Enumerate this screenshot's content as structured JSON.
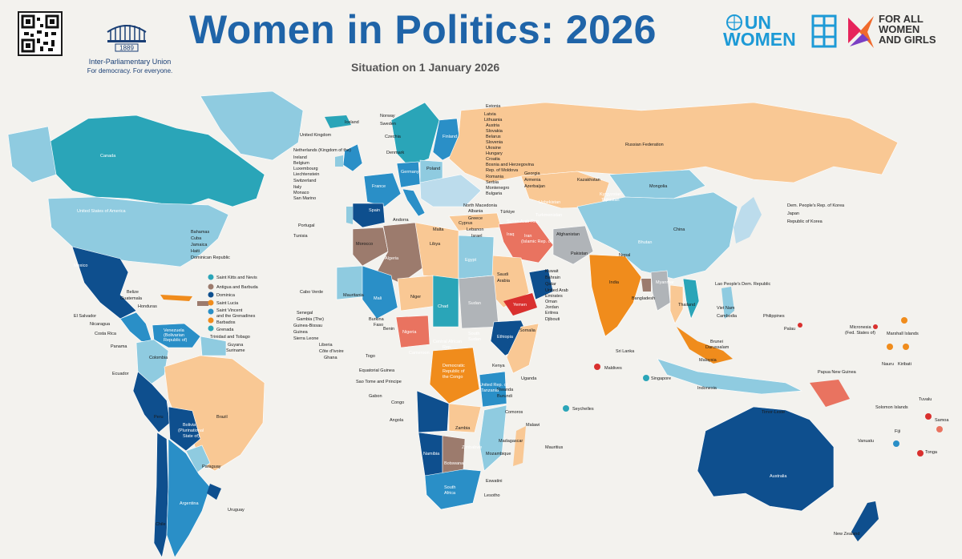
{
  "header": {
    "title": "Women in Politics: 2026",
    "subtitle": "Situation on 1 January 2026",
    "ipu_name": "Inter-Parliamentary Union",
    "ipu_tagline": "For democracy. For everyone.",
    "ipu_year": "1889",
    "unwomen_line1": "UN",
    "unwomen_line2": "WOMEN",
    "forall_line1": "FOR ALL",
    "forall_line2": "WOMEN",
    "forall_line3": "AND GIRLS"
  },
  "colors": {
    "ocean": "#f3f2ee",
    "title_blue": "#1f64a8",
    "dark_blue": "#0e4f8e",
    "mid_blue": "#2a8fc7",
    "teal": "#2aa5b8",
    "light_blue": "#8fcbe0",
    "pale_blue": "#bcdcec",
    "peach": "#f9c894",
    "orange": "#f08c1c",
    "brown": "#9c7b6d",
    "grey": "#b0b4b8",
    "red": "#d9302e",
    "salmon": "#e97360"
  },
  "map_labels": {
    "canada": "Canada",
    "usa": "United States of America",
    "mexico": "Mexico",
    "belize": "Belize",
    "guatemala": "Guatemala",
    "honduras": "Honduras",
    "el_salvador": "El Salvador",
    "nicaragua": "Nicaragua",
    "costa_rica": "Costa Rica",
    "panama": "Panama",
    "bahamas": "Bahamas",
    "cuba": "Cuba",
    "jamaica": "Jamaica",
    "haiti": "Haiti",
    "dominican_republic": "Dominican Republic",
    "saint_kitts": "Saint Kitts and Nevis",
    "antigua": "Antigua and Barbuda",
    "dominica": "Dominica",
    "saint_lucia": "Saint Lucia",
    "saint_vincent": "Saint Vincent",
    "saint_vincent_2": "and the Grenadines",
    "barbados": "Barbados",
    "grenada": "Grenada",
    "trinidad": "Trinidad and Tobago",
    "venezuela": "Venezuela",
    "venezuela_2": "(Bolivarian",
    "venezuela_3": "Republic of)",
    "guyana": "Guyana",
    "suriname": "Suriname",
    "colombia": "Colombia",
    "ecuador": "Ecuador",
    "peru": "Peru",
    "brazil": "Brazil",
    "bolivia": "Bolivia",
    "bolivia_2": "(Plurinational",
    "bolivia_3": "State of)",
    "paraguay": "Paraguay",
    "chile": "Chile",
    "argentina": "Argentina",
    "uruguay": "Uruguay",
    "iceland": "Iceland",
    "norway": "Norway",
    "sweden": "Sweden",
    "finland": "Finland",
    "estonia": "Estonia",
    "latvia": "Latvia",
    "lithuania": "Lithuania",
    "united_kingdom": "United Kingdom",
    "ireland": "Ireland",
    "netherlands": "Netherlands (Kingdom of the)",
    "belgium": "Belgium",
    "luxembourg": "Luxembourg",
    "liechtenstein": "Liechtenstein",
    "switzerland": "Switzerland",
    "italy": "Italy",
    "monaco": "Monaco",
    "san_marino": "San Marino",
    "denmark": "Denmark",
    "czechia": "Czechia",
    "germany": "Germany",
    "poland": "Poland",
    "france": "France",
    "spain": "Spain",
    "portugal": "Portugal",
    "andorra": "Andorra",
    "tunisia": "Tunisia",
    "malta": "Malta",
    "austria": "Austria",
    "slovakia": "Slovakia",
    "belarus": "Belarus",
    "slovenia": "Slovenia",
    "ukraine": "Ukraine",
    "hungary": "Hungary",
    "croatia": "Croatia",
    "bosnia": "Bosnia and Herzegovina",
    "moldova": "Rep. of Moldova",
    "romania": "Romania",
    "serbia": "Serbia",
    "montenegro": "Montenegro",
    "bulgaria": "Bulgaria",
    "north_macedonia": "North Macedonia",
    "albania": "Albania",
    "greece": "Greece",
    "turkiye": "Türkiye",
    "georgia": "Georgia",
    "armenia": "Armenia",
    "azerbaijan": "Azerbaijan",
    "kazakhstan": "Kazakhstan",
    "russia": "Russian Federation",
    "mongolia": "Mongolia",
    "kyrgyzstan": "Kyrgyzstan",
    "tajikistan": "Tajikistan",
    "uzbekistan": "Uzbekistan",
    "turkmenistan": "Turkmenistan",
    "afghanistan": "Afghanistan",
    "pakistan": "Pakistan",
    "india": "India",
    "nepal": "Nepal",
    "bhutan": "Bhutan",
    "bangladesh": "Bangladesh",
    "sri_lanka": "Sri Lanka",
    "maldives": "Maldives",
    "china": "China",
    "dprk": "Dem. People's Rep. of Korea",
    "japan": "Japan",
    "rok": "Republic of Korea",
    "myanmar": "Myanmar",
    "lao": "Lao People's Dem. Republic",
    "thailand": "Thailand",
    "viet_nam": "Viet Nam",
    "cambodia": "Cambodia",
    "philippines": "Philippines",
    "malaysia": "Malaysia",
    "brunei": "Brunei",
    "brunei_2": "Darussalam",
    "singapore": "Singapore",
    "indonesia": "Indonesia",
    "timor_leste": "Timor-Leste",
    "palau": "Palau",
    "micronesia": "Micronesia",
    "micronesia_2": "(Fed. States of)",
    "marshall": "Marshall Islands",
    "nauru": "Nauru",
    "kiribati": "Kiribati",
    "tuvalu": "Tuvalu",
    "png": "Papua New Guinea",
    "solomon": "Solomon Islands",
    "vanuatu": "Vanuatu",
    "fiji": "Fiji",
    "samoa": "Samoa",
    "tonga": "Tonga",
    "australia": "Australia",
    "new_zealand": "New Zealand",
    "morocco": "Morocco",
    "algeria": "Algeria",
    "libya": "Libya",
    "egypt": "Egypt",
    "cyprus": "Cyprus",
    "lebanon": "Lebanon",
    "israel": "Israel",
    "syria": "Syrian Arab Rep.",
    "iraq": "Iraq",
    "iran": "Iran",
    "iran_2": "(Islamic Rep. of)",
    "saudi": "Saudi",
    "saudi_2": "Arabia",
    "kuwait": "Kuwait",
    "bahrain": "Bahrain",
    "qatar": "Qatar",
    "uae": "United Arab",
    "uae_2": "Emirates",
    "oman": "Oman",
    "jordan": "Jordan",
    "eritrea": "Eritrea",
    "djibouti": "Djibouti",
    "yemen": "Yemen",
    "mauritania": "Mauritania",
    "mali": "Mali",
    "niger": "Niger",
    "chad": "Chad",
    "sudan": "Sudan",
    "cabo_verde": "Cabo Verde",
    "senegal": "Senegal",
    "gambia": "Gambia (The)",
    "guinea_bissau": "Guinea-Bissau",
    "guinea": "Guinea",
    "sierra_leone": "Sierra Leone",
    "liberia": "Liberia",
    "cote_divoire": "Côte d'Ivoire",
    "ghana": "Ghana",
    "togo": "Togo",
    "burkina": "Burkina",
    "burkina_2": "Faso",
    "benin": "Benin",
    "nigeria": "Nigeria",
    "cameroon": "Cameroon",
    "car": "Central African",
    "car_2": "Rep.",
    "south_sudan": "South",
    "south_sudan_2": "Sudan",
    "ethiopia": "Ethiopia",
    "somalia": "Somalia",
    "equatorial_guinea": "Equatorial Guinea",
    "sao_tome": "Sao Tome and Principe",
    "gabon": "Gabon",
    "congo": "Congo",
    "drc": "Democratic",
    "drc_2": "Republic of",
    "drc_3": "the Congo",
    "uganda": "Uganda",
    "kenya": "Kenya",
    "rwanda": "Rwanda",
    "burundi": "Burundi",
    "tanzania": "United Rep. of",
    "tanzania_2": "Tanzania",
    "seychelles": "Seychelles",
    "angola": "Angola",
    "zambia": "Zambia",
    "malawi": "Malawi",
    "comoros": "Comoros",
    "madagascar": "Madagascar",
    "mauritius": "Mauritius",
    "mozambique": "Mozambique",
    "zimbabwe": "Zimbabwe",
    "namibia": "Namibia",
    "botswana": "Botswana",
    "south_africa": "South",
    "south_africa_2": "Africa",
    "eswatini": "Eswatini",
    "lesotho": "Lesotho"
  }
}
